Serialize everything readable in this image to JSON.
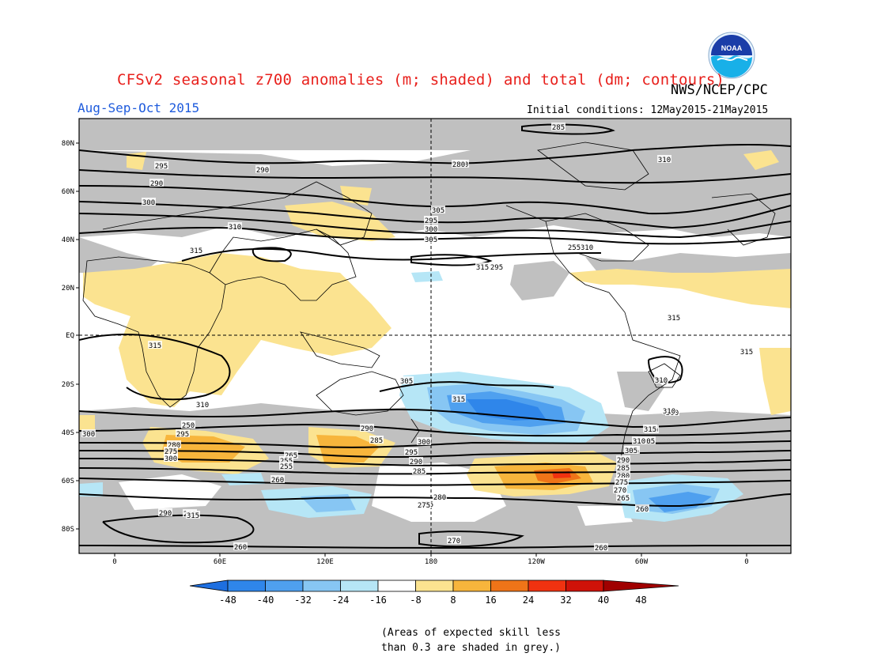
{
  "header": {
    "title": "CFSv2 seasonal z700 anomalies (m; shaded) and total (dm; contours)",
    "agency": "NWS/NCEP/CPC",
    "season": "Aug-Sep-Oct 2015",
    "initial_conditions": "Initial conditions: 12May2015-21May2015",
    "logo_text": "NOAA"
  },
  "map": {
    "lat_labels": [
      "80N",
      "60N",
      "40N",
      "20N",
      "EQ",
      "20S",
      "40S",
      "60S",
      "80S"
    ],
    "lon_labels": [
      "0",
      "60E",
      "120E",
      "180",
      "120W",
      "60W",
      "0"
    ],
    "contour_labels": [
      "285",
      "295",
      "290",
      "290",
      "290",
      "300",
      "305",
      "295",
      "300",
      "305",
      "310",
      "310",
      "315",
      "315",
      "315",
      "310",
      "315",
      "315",
      "310",
      "305",
      "300",
      "310",
      "315",
      "305",
      "300",
      "295",
      "290",
      "285",
      "280",
      "275",
      "270",
      "265",
      "255",
      "255",
      "260",
      "260",
      "260",
      "255",
      "300",
      "305",
      "295",
      "290",
      "285",
      "280",
      "275",
      "270",
      "265",
      "260",
      "300",
      "295",
      "290",
      "285",
      "280",
      "275",
      "270",
      "260",
      "250",
      "255",
      "310",
      "315",
      "310",
      "305",
      "300",
      "295",
      "280",
      "315",
      "290",
      "260",
      "255"
    ],
    "shading_note": "Areas of expected skill less than 0.3 are shaded in grey."
  },
  "colorbar": {
    "labels": [
      "-48",
      "-40",
      "-32",
      "-24",
      "-16",
      "-8",
      "8",
      "16",
      "24",
      "32",
      "40",
      "48"
    ],
    "colors": [
      "#1e6fe0",
      "#2f86ea",
      "#4fa0ef",
      "#87c6f3",
      "#b6e6f6",
      "#ffffff",
      "#fbe390",
      "#f7b53c",
      "#ef7418",
      "#f03210",
      "#cf1208",
      "#a00000"
    ]
  },
  "footer": {
    "note_line1": "(Areas of expected skill less",
    "note_line2": "than 0.3 are shaded in grey.)"
  }
}
